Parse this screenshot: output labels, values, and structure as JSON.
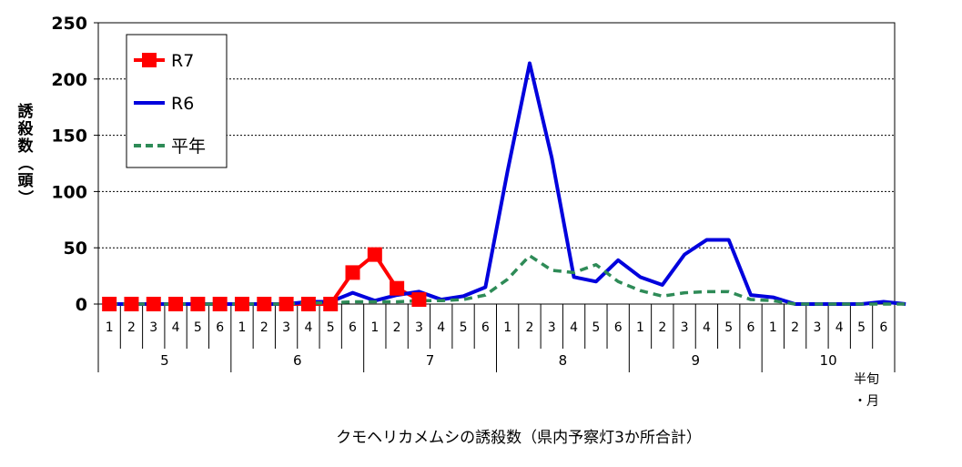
{
  "chart_data": {
    "type": "line",
    "ylabel": "誘殺数（頭）",
    "xlabel": "クモヘリカメムシの誘殺数（県内予察灯3か所合計）",
    "x_unit_label": [
      "半旬",
      "・月"
    ],
    "ylim": [
      0,
      250
    ],
    "yticks": [
      0,
      50,
      100,
      150,
      200,
      250
    ],
    "grid": "horizontal dotted",
    "legend_position": "top-left",
    "months": [
      "5",
      "6",
      "7",
      "8",
      "9",
      "10"
    ],
    "pentads": [
      "1",
      "2",
      "3",
      "4",
      "5",
      "6"
    ],
    "series": [
      {
        "name": "R7",
        "color": "#ff0000",
        "style": "solid-square-markers",
        "values": [
          0,
          0,
          0,
          0,
          0,
          0,
          0,
          0,
          0,
          0,
          0,
          28,
          44,
          14,
          4
        ]
      },
      {
        "name": "R6",
        "color": "#0000dd",
        "style": "solid",
        "values": [
          0,
          0,
          0,
          0,
          0,
          0,
          0,
          0,
          0,
          2,
          2,
          10,
          3,
          8,
          11,
          4,
          7,
          15,
          118,
          214,
          130,
          24,
          20,
          39,
          24,
          17,
          44,
          57,
          57,
          8,
          6,
          0,
          0,
          0,
          0,
          2,
          0
        ]
      },
      {
        "name": "平年",
        "color": "#2e8b57",
        "style": "dashed",
        "values": [
          0,
          0,
          0,
          0,
          0,
          0,
          0,
          0,
          0,
          1,
          1,
          2,
          2,
          2,
          3,
          3,
          4,
          8,
          22,
          43,
          30,
          28,
          35,
          20,
          12,
          7,
          10,
          11,
          11,
          4,
          3,
          0,
          0,
          0,
          0,
          0,
          0
        ]
      }
    ]
  }
}
